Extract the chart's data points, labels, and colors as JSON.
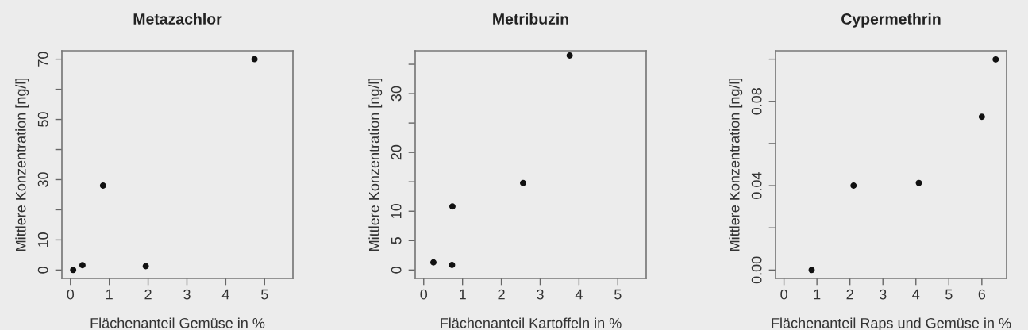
{
  "chart_data": [
    {
      "type": "scatter",
      "title": "Metazachlor",
      "xlabel": "Flächenanteil Gemüse in %",
      "ylabel": "Mittlere Konzentration [ng/l]",
      "marker": "circle",
      "grid": false,
      "legend": false,
      "x": [
        0.07,
        0.31,
        0.84,
        1.94,
        4.74
      ],
      "series": [
        {
          "color": "#111111",
          "values": [
            0,
            1.6,
            28.0,
            1.3,
            70.0
          ]
        }
      ],
      "xlim": [
        -0.22,
        5.73
      ],
      "xticks": [
        0,
        1,
        2,
        3,
        4,
        5
      ],
      "ylim": [
        -2.8,
        72.8
      ],
      "yticks": [
        0,
        10,
        {
          "value": 20,
          "label": null
        },
        30,
        {
          "value": 40,
          "label": null
        },
        50,
        {
          "value": 60,
          "label": null
        },
        70
      ]
    },
    {
      "type": "scatter",
      "title": "Metribuzin",
      "xlabel": "Flächenanteil Kartoffeln in %",
      "ylabel": "Mittlere Konzentration [ng/l]",
      "marker": "circle",
      "grid": false,
      "legend": false,
      "x": [
        0.25,
        0.73,
        0.74,
        2.56,
        3.76
      ],
      "series": [
        {
          "color": "#111111",
          "values": [
            1.3,
            0.86,
            10.8,
            14.8,
            36.5
          ]
        }
      ],
      "xlim": [
        -0.22,
        5.73
      ],
      "xticks": [
        0,
        1,
        2,
        3,
        4,
        5
      ],
      "ylim": [
        -1.44,
        37.3
      ],
      "yticks": [
        0,
        5,
        10,
        {
          "value": 15,
          "label": null
        },
        20,
        {
          "value": 25,
          "label": null
        },
        30,
        {
          "value": 35,
          "label": null
        }
      ]
    },
    {
      "type": "scatter",
      "title": "Cypermethrin",
      "xlabel": "Flächenanteil Raps und Gemüse in %",
      "ylabel": "Mittlere Konzentration [ng/l]",
      "marker": "circle",
      "grid": false,
      "legend": false,
      "x": [
        0.84,
        2.11,
        4.09,
        6.0,
        6.42
      ],
      "series": [
        {
          "color": "#111111",
          "values": [
            0.0,
            0.04,
            0.0413,
            0.0727,
            0.0999
          ]
        }
      ],
      "xlim": [
        -0.255,
        6.75
      ],
      "xticks": [
        0,
        1,
        2,
        3,
        4,
        5,
        6
      ],
      "ylim": [
        -0.004,
        0.104
      ],
      "yticks": [
        {
          "value": 0,
          "label": "0.00"
        },
        {
          "value": 0.02,
          "label": null
        },
        {
          "value": 0.04,
          "label": "0.04"
        },
        {
          "value": 0.06,
          "label": null
        },
        {
          "value": 0.08,
          "label": "0.08"
        },
        {
          "value": 0.1,
          "label": null
        }
      ]
    }
  ]
}
